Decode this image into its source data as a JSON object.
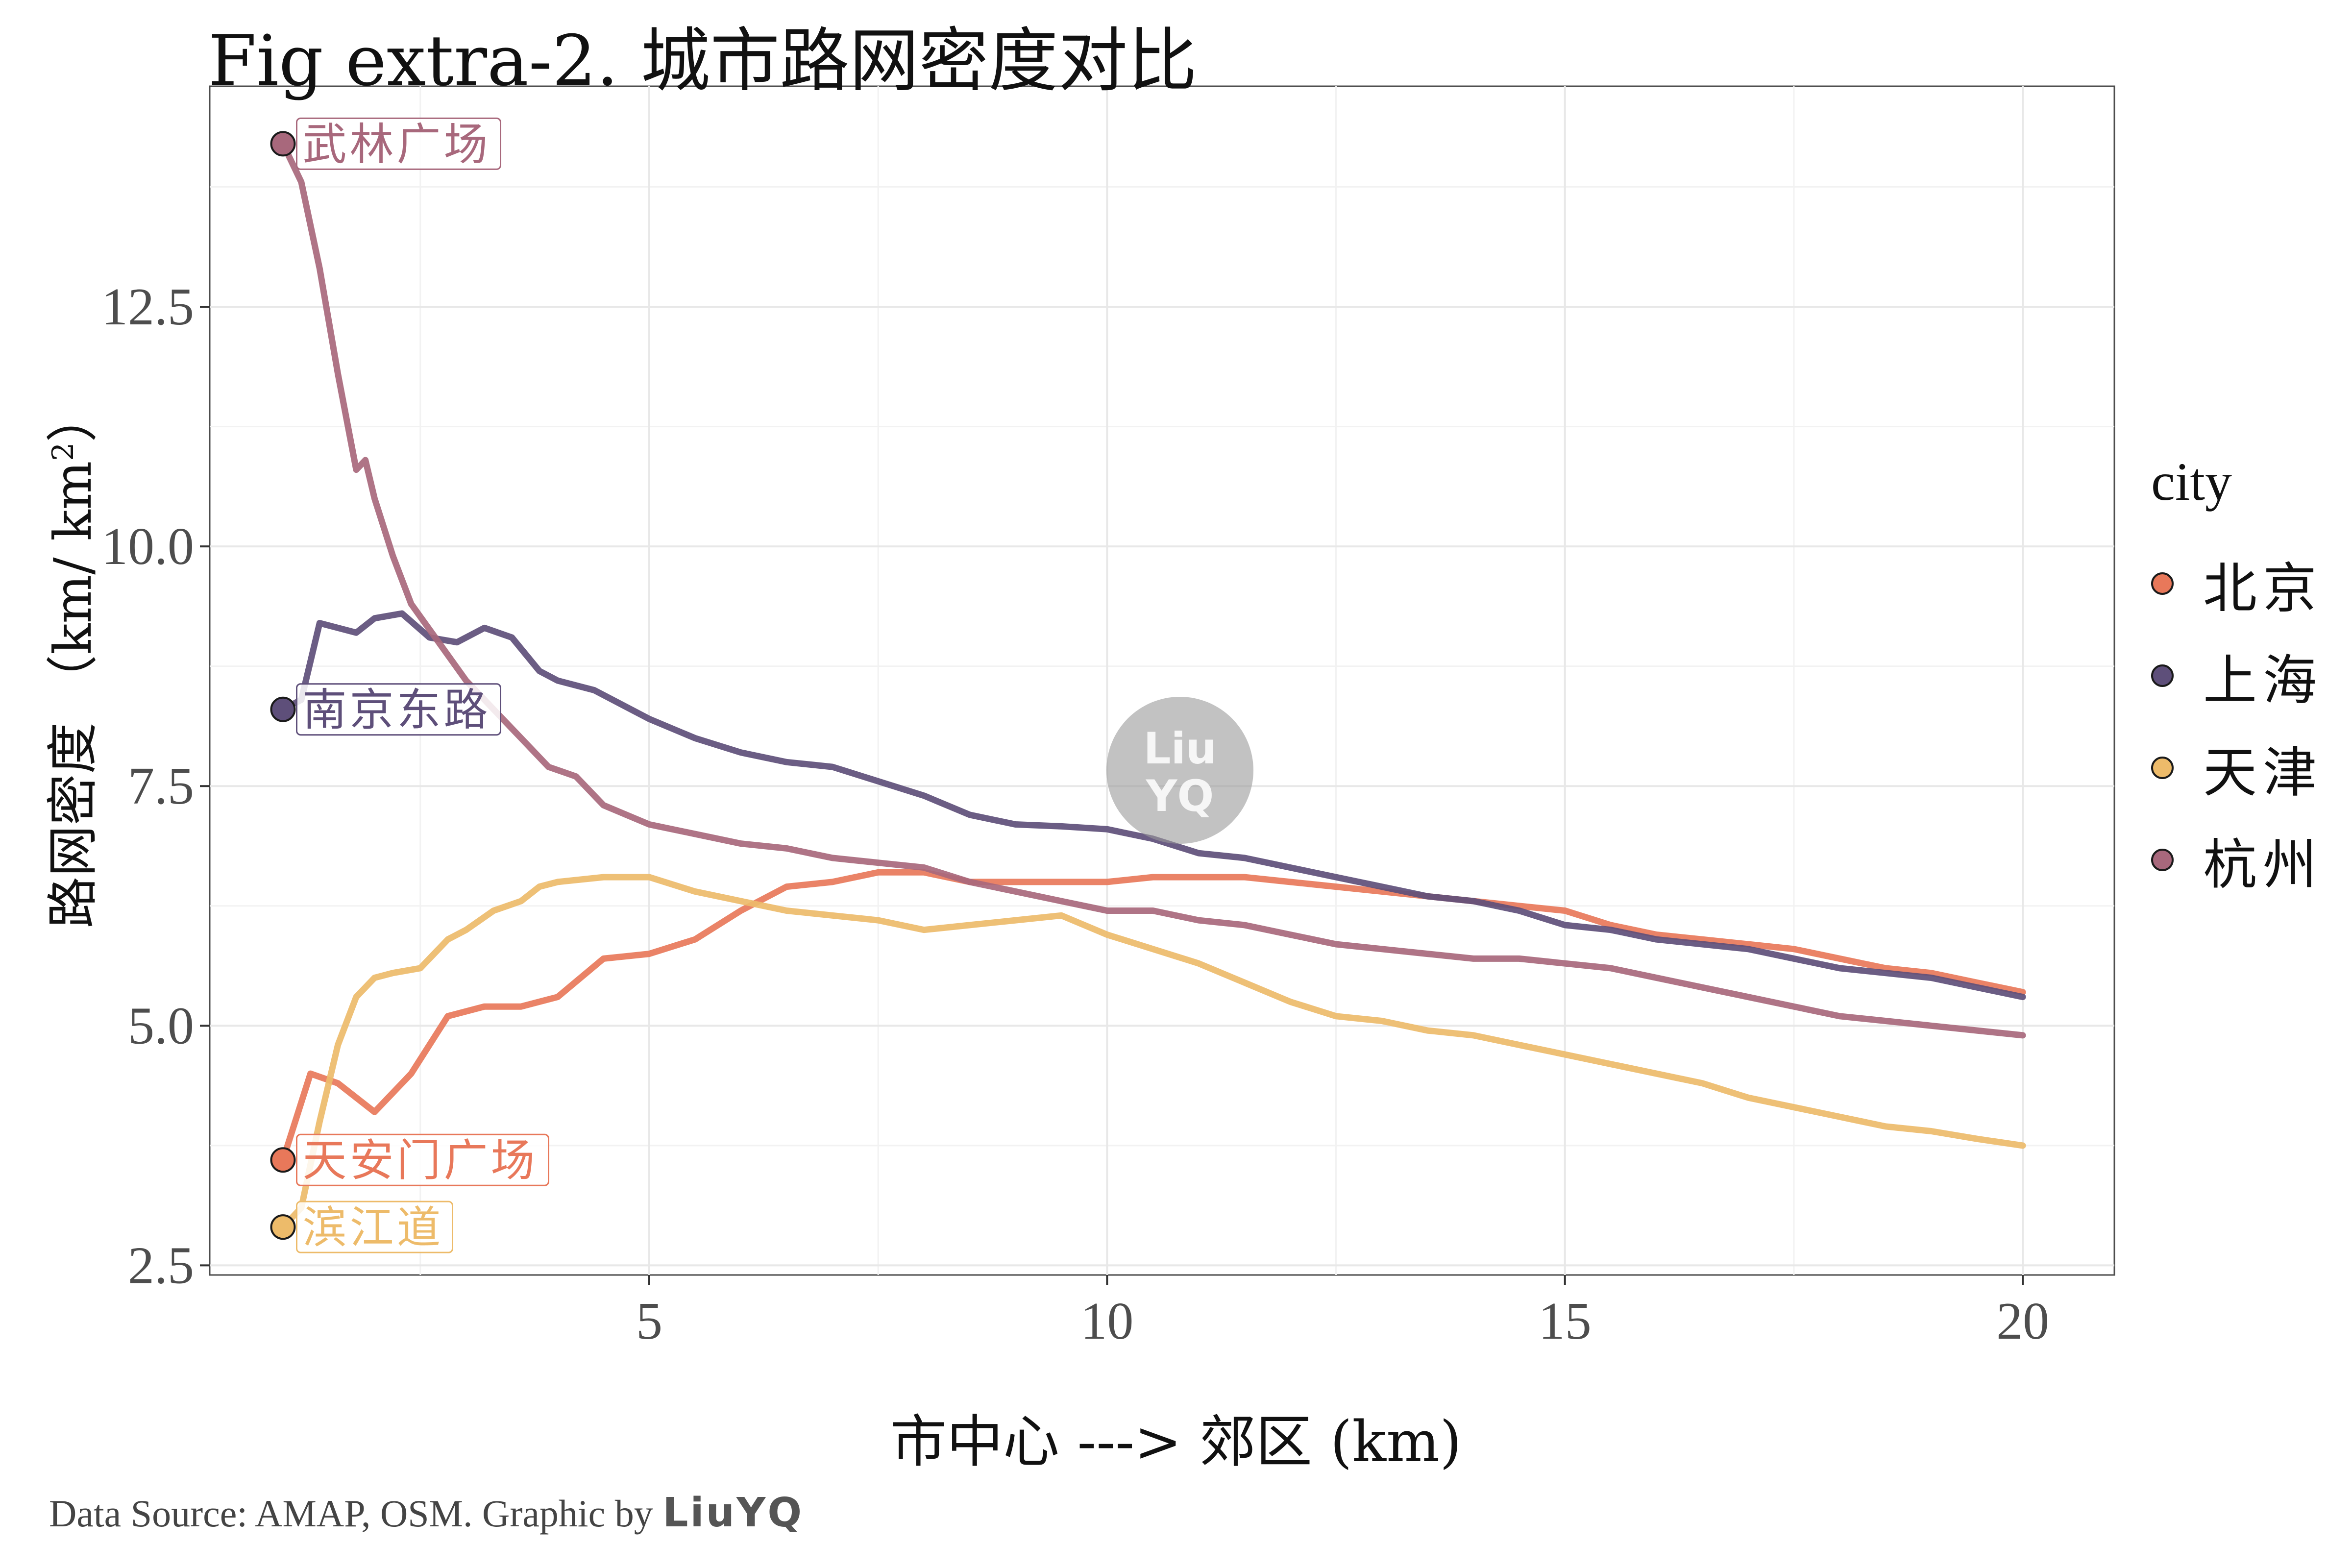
{
  "title": "Fig extra-2. 城市路网密度对比",
  "caption": {
    "text": "Data Source: AMAP, OSM. Graphic by",
    "signature": "LiuYQ"
  },
  "watermark": {
    "line1": "Liu",
    "line2": "YQ"
  },
  "chart_data": {
    "type": "line",
    "xlabel": "市中心 ---> 郊区 (km)",
    "ylabel_prefix": "路网密度 （km/ km",
    "ylabel_sup": "2",
    "ylabel_suffix": "）",
    "xlim": [
      0.2,
      21.0
    ],
    "ylim": [
      2.4,
      14.8
    ],
    "xticks": [
      5,
      10,
      15,
      20
    ],
    "xtick_labels": [
      "5",
      "10",
      "15",
      "20"
    ],
    "yticks": [
      2.5,
      5.0,
      7.5,
      10.0,
      12.5
    ],
    "ytick_labels": [
      "2.5",
      "5.0",
      "7.5",
      "10.0",
      "12.5"
    ],
    "grid": true,
    "legend": {
      "title": "city",
      "position": "right"
    },
    "series": [
      {
        "name": "北京",
        "color": "#E8785A",
        "start_label": "天安门广场",
        "x": [
          1.0,
          1.3,
          1.6,
          2.0,
          2.4,
          2.8,
          3.2,
          3.6,
          4.0,
          4.5,
          5.0,
          5.5,
          6.0,
          6.5,
          7.0,
          7.5,
          8.0,
          8.5,
          9.0,
          9.5,
          10.0,
          10.5,
          11.0,
          11.5,
          12.0,
          12.5,
          13.0,
          13.5,
          14.0,
          14.5,
          15.0,
          15.5,
          16.0,
          16.5,
          17.0,
          17.5,
          18.0,
          18.5,
          19.0,
          19.5,
          20.0
        ],
        "y": [
          3.6,
          4.5,
          4.4,
          4.1,
          4.5,
          5.1,
          5.2,
          5.2,
          5.3,
          5.7,
          5.75,
          5.9,
          6.2,
          6.45,
          6.5,
          6.6,
          6.6,
          6.5,
          6.5,
          6.5,
          6.5,
          6.55,
          6.55,
          6.55,
          6.5,
          6.45,
          6.4,
          6.35,
          6.3,
          6.25,
          6.2,
          6.05,
          5.95,
          5.9,
          5.85,
          5.8,
          5.7,
          5.6,
          5.55,
          5.45,
          5.35
        ]
      },
      {
        "name": "上海",
        "color": "#5E4F7A",
        "start_label": "南京东路",
        "x": [
          1.0,
          1.2,
          1.4,
          1.6,
          1.8,
          2.0,
          2.3,
          2.6,
          2.9,
          3.2,
          3.5,
          3.8,
          4.0,
          4.4,
          5.0,
          5.5,
          6.0,
          6.5,
          7.0,
          7.5,
          8.0,
          8.5,
          9.0,
          9.5,
          10.0,
          10.5,
          11.0,
          11.5,
          12.0,
          12.5,
          13.0,
          13.5,
          14.0,
          14.5,
          15.0,
          15.5,
          16.0,
          16.5,
          17.0,
          17.5,
          18.0,
          18.5,
          19.0,
          19.5,
          20.0
        ],
        "y": [
          8.3,
          8.4,
          9.2,
          9.15,
          9.1,
          9.25,
          9.3,
          9.05,
          9.0,
          9.15,
          9.05,
          8.7,
          8.6,
          8.5,
          8.2,
          8.0,
          7.85,
          7.75,
          7.7,
          7.55,
          7.4,
          7.2,
          7.1,
          7.08,
          7.05,
          6.95,
          6.8,
          6.75,
          6.65,
          6.55,
          6.45,
          6.35,
          6.3,
          6.2,
          6.05,
          6.0,
          5.9,
          5.85,
          5.8,
          5.7,
          5.6,
          5.55,
          5.5,
          5.4,
          5.3
        ]
      },
      {
        "name": "天津",
        "color": "#EDBB6A",
        "start_label": "滨江道",
        "x": [
          1.0,
          1.2,
          1.4,
          1.6,
          1.8,
          2.0,
          2.2,
          2.5,
          2.8,
          3.0,
          3.3,
          3.6,
          3.8,
          4.0,
          4.5,
          5.0,
          5.5,
          6.0,
          6.5,
          7.0,
          7.5,
          8.0,
          8.5,
          9.0,
          9.5,
          10.0,
          10.5,
          11.0,
          11.5,
          12.0,
          12.5,
          13.0,
          13.5,
          14.0,
          14.5,
          15.0,
          15.5,
          16.0,
          16.5,
          17.0,
          17.5,
          18.0,
          18.5,
          19.0,
          19.5,
          20.0
        ],
        "y": [
          2.9,
          3.1,
          4.0,
          4.8,
          5.3,
          5.5,
          5.55,
          5.6,
          5.9,
          6.0,
          6.2,
          6.3,
          6.45,
          6.5,
          6.55,
          6.55,
          6.4,
          6.3,
          6.2,
          6.15,
          6.1,
          6.0,
          6.05,
          6.1,
          6.15,
          5.95,
          5.8,
          5.65,
          5.45,
          5.25,
          5.1,
          5.05,
          4.95,
          4.9,
          4.8,
          4.7,
          4.6,
          4.5,
          4.4,
          4.25,
          4.15,
          4.05,
          3.95,
          3.9,
          3.82,
          3.75
        ]
      },
      {
        "name": "杭州",
        "color": "#A8687C",
        "start_label": "武林广场",
        "x": [
          1.0,
          1.2,
          1.4,
          1.6,
          1.7,
          1.8,
          1.9,
          2.0,
          2.2,
          2.4,
          2.7,
          3.0,
          3.3,
          3.6,
          3.9,
          4.2,
          4.5,
          5.0,
          5.5,
          6.0,
          6.5,
          7.0,
          7.5,
          8.0,
          8.5,
          9.0,
          9.5,
          10.0,
          10.5,
          11.0,
          11.5,
          12.0,
          12.5,
          13.0,
          13.5,
          14.0,
          14.5,
          15.0,
          15.5,
          16.0,
          16.5,
          17.0,
          17.5,
          18.0,
          18.5,
          19.0,
          19.5,
          20.0
        ],
        "y": [
          14.2,
          13.8,
          12.9,
          11.8,
          11.3,
          10.8,
          10.9,
          10.5,
          9.9,
          9.4,
          9.0,
          8.6,
          8.3,
          8.0,
          7.7,
          7.6,
          7.3,
          7.1,
          7.0,
          6.9,
          6.85,
          6.75,
          6.7,
          6.65,
          6.5,
          6.4,
          6.3,
          6.2,
          6.2,
          6.1,
          6.05,
          5.95,
          5.85,
          5.8,
          5.75,
          5.7,
          5.7,
          5.65,
          5.6,
          5.5,
          5.4,
          5.3,
          5.2,
          5.1,
          5.05,
          5.0,
          4.95,
          4.9
        ]
      }
    ]
  }
}
